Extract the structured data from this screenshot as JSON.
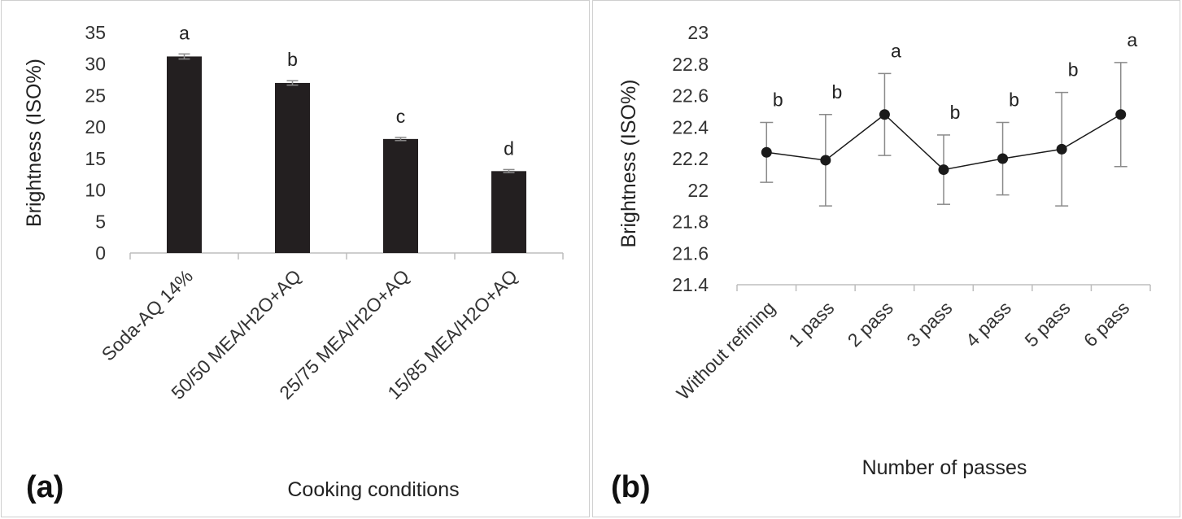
{
  "chart_data": [
    {
      "type": "bar",
      "panel_label": "(a)",
      "xlabel": "Cooking conditions",
      "ylabel": "Brightness (ISO%)",
      "ylim": [
        0,
        35
      ],
      "yticks": [
        "0",
        "5",
        "10",
        "15",
        "20",
        "25",
        "30",
        "35"
      ],
      "categories": [
        "Soda-AQ 14%",
        "50/50 MEA/H2O+AQ",
        "25/75 MEA/H2O+AQ",
        "15/85 MEA/H2O+AQ"
      ],
      "values": [
        31.2,
        27.0,
        18.1,
        13.0
      ],
      "errors": [
        0.4,
        0.35,
        0.25,
        0.25
      ],
      "significance": [
        "a",
        "b",
        "c",
        "d"
      ],
      "bar_color": "#231f20"
    },
    {
      "type": "line",
      "panel_label": "(b)",
      "xlabel": "Number of passes",
      "ylabel": "Brightness (ISO%)",
      "ylim": [
        21.4,
        23.0
      ],
      "yticks": [
        "21.4",
        "21.6",
        "21.8",
        "22",
        "22.2",
        "22.4",
        "22.6",
        "22.8",
        "23"
      ],
      "categories": [
        "Without refining",
        "1 pass",
        "2 pass",
        "3 pass",
        "4 pass",
        "5 pass",
        "6 pass"
      ],
      "values": [
        22.24,
        22.19,
        22.48,
        22.13,
        22.2,
        22.26,
        22.48
      ],
      "error_upper": [
        22.43,
        22.48,
        22.74,
        22.35,
        22.43,
        22.62,
        22.81
      ],
      "error_lower": [
        22.05,
        21.9,
        22.22,
        21.91,
        21.97,
        21.9,
        22.15
      ],
      "significance": [
        "b",
        "b",
        "a",
        "b",
        "b",
        "b",
        "a"
      ],
      "marker_color": "#1a1a1a"
    }
  ]
}
